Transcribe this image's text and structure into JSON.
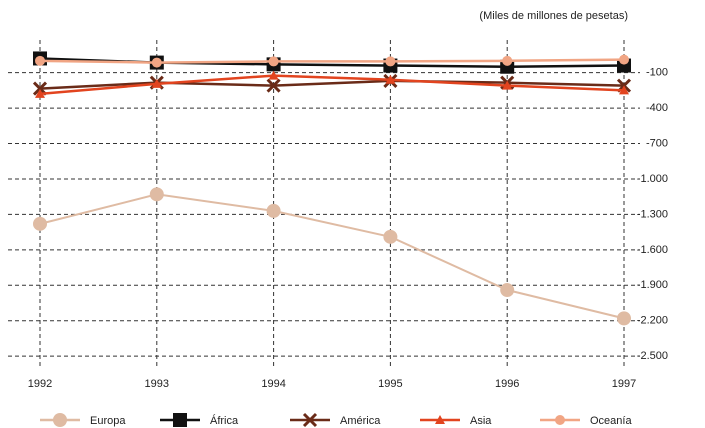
{
  "chart_data": {
    "type": "line",
    "subtitle": "(Miles de millones de pesetas)",
    "categories": [
      "1992",
      "1993",
      "1994",
      "1995",
      "1996",
      "1997"
    ],
    "series": [
      {
        "name": "Europa",
        "color": "#dfbba3",
        "marker": "circle",
        "values": [
          -1380,
          -1130,
          -1270,
          -1490,
          -1940,
          -2180
        ]
      },
      {
        "name": "África",
        "color": "#111111",
        "marker": "square",
        "values": [
          20,
          -15,
          -30,
          -40,
          -50,
          -40
        ]
      },
      {
        "name": "América",
        "color": "#6a2b18",
        "marker": "x",
        "values": [
          -235,
          -185,
          -210,
          -170,
          -185,
          -210
        ]
      },
      {
        "name": "Asia",
        "color": "#e2441f",
        "marker": "triangle",
        "values": [
          -280,
          -195,
          -125,
          -160,
          -210,
          -250
        ]
      },
      {
        "name": "Oceanía",
        "color": "#f1a584",
        "marker": "dot",
        "values": [
          0,
          -15,
          -5,
          -5,
          0,
          10
        ]
      }
    ],
    "ylim": [
      -2600,
      100
    ],
    "yticks": [
      -100,
      -400,
      -700,
      {
        "value": -1000,
        "label": "-1.000"
      },
      {
        "value": -1300,
        "label": "-1.300"
      },
      {
        "value": -1600,
        "label": "-1.600"
      },
      {
        "value": -1900,
        "label": "-1.900"
      },
      {
        "value": -2200,
        "label": "-2.200"
      },
      {
        "value": -2500,
        "label": "-2.500"
      }
    ],
    "grid": true
  }
}
